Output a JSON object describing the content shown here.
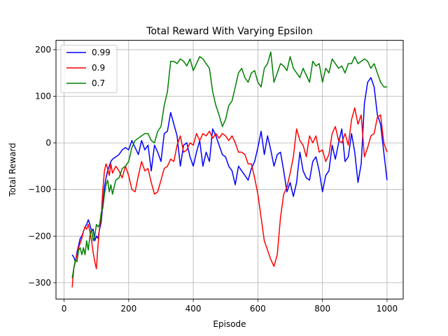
{
  "chart_data": {
    "type": "line",
    "title": "Total Reward With Varying Epsilon",
    "xlabel": "Episode",
    "ylabel": "Total Reward",
    "xlim": [
      -25,
      1050
    ],
    "ylim": [
      -335,
      220
    ],
    "xticks": [
      0,
      200,
      400,
      600,
      800,
      1000
    ],
    "yticks": [
      -300,
      -200,
      -100,
      0,
      100,
      200
    ],
    "xtick_labels": [
      "0",
      "200",
      "400",
      "600",
      "800",
      "1000"
    ],
    "ytick_labels": [
      "−300",
      "−200",
      "−100",
      "0",
      "100",
      "200"
    ],
    "grid": true,
    "legend_position": "top-left",
    "series": [
      {
        "name": "0.99",
        "color": "#0000ff",
        "x": [
          25,
          30,
          35,
          40,
          45,
          50,
          55,
          60,
          65,
          70,
          75,
          80,
          85,
          90,
          95,
          100,
          105,
          110,
          115,
          120,
          125,
          130,
          135,
          140,
          145,
          150,
          160,
          170,
          180,
          190,
          200,
          210,
          220,
          230,
          240,
          250,
          260,
          270,
          280,
          290,
          300,
          310,
          320,
          330,
          340,
          350,
          360,
          370,
          380,
          390,
          400,
          410,
          420,
          430,
          440,
          450,
          460,
          470,
          480,
          490,
          500,
          510,
          520,
          530,
          540,
          550,
          560,
          570,
          580,
          590,
          600,
          610,
          620,
          630,
          640,
          650,
          660,
          670,
          680,
          690,
          700,
          710,
          720,
          730,
          740,
          750,
          760,
          770,
          780,
          790,
          800,
          810,
          820,
          830,
          840,
          850,
          860,
          870,
          880,
          890,
          900,
          910,
          920,
          930,
          940,
          950,
          960,
          970,
          980,
          990,
          1000
        ],
        "y": [
          -240,
          -245,
          -255,
          -235,
          -220,
          -205,
          -200,
          -190,
          -180,
          -175,
          -165,
          -175,
          -190,
          -185,
          -210,
          -200,
          -205,
          -185,
          -170,
          -130,
          -95,
          -75,
          -60,
          -50,
          -40,
          -35,
          -30,
          -25,
          -15,
          -10,
          -15,
          5,
          -10,
          -25,
          5,
          -15,
          -5,
          -60,
          -5,
          -20,
          -40,
          20,
          25,
          65,
          40,
          15,
          -50,
          -5,
          0,
          -30,
          -50,
          -20,
          5,
          -50,
          -20,
          -40,
          30,
          15,
          -5,
          -25,
          -30,
          -50,
          -60,
          -90,
          -50,
          -60,
          -70,
          -80,
          -55,
          -40,
          -10,
          25,
          -25,
          15,
          -15,
          -50,
          -25,
          -20,
          -60,
          -105,
          -85,
          -115,
          -85,
          -20,
          -60,
          -75,
          -80,
          -40,
          -30,
          -60,
          -105,
          -70,
          -60,
          -5,
          -35,
          0,
          30,
          -40,
          -30,
          20,
          -20,
          -85,
          -45,
          85,
          130,
          140,
          120,
          60,
          40,
          -20,
          -80
        ]
      },
      {
        "name": "0.9",
        "color": "#ff0000",
        "x": [
          25,
          30,
          35,
          40,
          45,
          50,
          55,
          60,
          65,
          70,
          75,
          80,
          85,
          90,
          95,
          100,
          105,
          110,
          115,
          120,
          125,
          130,
          135,
          140,
          145,
          150,
          160,
          170,
          180,
          190,
          200,
          210,
          220,
          230,
          240,
          250,
          260,
          270,
          280,
          290,
          300,
          310,
          320,
          330,
          340,
          350,
          360,
          370,
          380,
          390,
          400,
          410,
          420,
          430,
          440,
          450,
          460,
          470,
          480,
          490,
          500,
          510,
          520,
          530,
          540,
          550,
          560,
          570,
          580,
          590,
          600,
          610,
          620,
          630,
          640,
          650,
          660,
          670,
          680,
          690,
          700,
          710,
          720,
          730,
          740,
          750,
          760,
          770,
          780,
          790,
          800,
          810,
          820,
          830,
          840,
          850,
          860,
          870,
          880,
          890,
          900,
          910,
          920,
          930,
          940,
          950,
          960,
          970,
          980,
          990,
          1000
        ],
        "y": [
          -310,
          -270,
          -255,
          -240,
          -225,
          -215,
          -205,
          -190,
          -180,
          -185,
          -175,
          -190,
          -210,
          -235,
          -255,
          -270,
          -220,
          -180,
          -160,
          -100,
          -60,
          -45,
          -55,
          -70,
          -45,
          -65,
          -50,
          -60,
          -75,
          -50,
          -70,
          -100,
          -105,
          -70,
          -40,
          -60,
          -55,
          -85,
          -110,
          -105,
          -80,
          -55,
          -50,
          -35,
          -40,
          -5,
          15,
          -20,
          -15,
          0,
          -5,
          20,
          5,
          20,
          15,
          25,
          10,
          20,
          10,
          20,
          15,
          5,
          15,
          0,
          -20,
          -20,
          -25,
          -45,
          -45,
          -75,
          -110,
          -160,
          -210,
          -230,
          -250,
          -265,
          -240,
          -160,
          -110,
          -95,
          -65,
          -30,
          30,
          5,
          -5,
          -30,
          15,
          0,
          15,
          -20,
          -15,
          -40,
          -25,
          20,
          35,
          5,
          0,
          20,
          -5,
          50,
          75,
          40,
          60,
          -30,
          -10,
          15,
          20,
          55,
          60,
          0,
          -20
        ]
      },
      {
        "name": "0.7",
        "color": "#008000",
        "x": [
          25,
          30,
          35,
          40,
          45,
          50,
          55,
          60,
          65,
          70,
          75,
          80,
          85,
          90,
          95,
          100,
          105,
          110,
          115,
          120,
          125,
          130,
          135,
          140,
          145,
          150,
          160,
          170,
          180,
          190,
          200,
          210,
          220,
          230,
          240,
          250,
          260,
          270,
          280,
          290,
          300,
          310,
          320,
          330,
          340,
          350,
          360,
          370,
          380,
          390,
          400,
          410,
          420,
          430,
          440,
          450,
          460,
          470,
          480,
          490,
          500,
          510,
          520,
          530,
          540,
          550,
          560,
          570,
          580,
          590,
          600,
          610,
          620,
          630,
          640,
          650,
          660,
          670,
          680,
          690,
          700,
          710,
          720,
          730,
          740,
          750,
          760,
          770,
          780,
          790,
          800,
          810,
          820,
          830,
          840,
          850,
          860,
          870,
          880,
          890,
          900,
          910,
          920,
          930,
          940,
          950,
          960,
          970,
          980,
          990,
          1000
        ],
        "y": [
          -290,
          -270,
          -250,
          -255,
          -230,
          -225,
          -240,
          -225,
          -240,
          -210,
          -230,
          -200,
          -185,
          -210,
          -200,
          -175,
          -180,
          -175,
          -150,
          -140,
          -110,
          -90,
          -80,
          -105,
          -90,
          -110,
          -80,
          -75,
          -55,
          -50,
          -40,
          -10,
          5,
          10,
          15,
          20,
          20,
          5,
          0,
          25,
          35,
          80,
          110,
          175,
          175,
          170,
          180,
          175,
          165,
          180,
          155,
          170,
          185,
          180,
          170,
          160,
          110,
          80,
          60,
          35,
          50,
          80,
          90,
          120,
          150,
          160,
          140,
          130,
          150,
          155,
          130,
          120,
          160,
          170,
          195,
          130,
          150,
          170,
          165,
          155,
          185,
          160,
          150,
          140,
          160,
          145,
          130,
          175,
          165,
          170,
          130,
          160,
          150,
          180,
          170,
          160,
          165,
          150,
          170,
          170,
          185,
          170,
          175,
          180,
          175,
          160,
          170,
          150,
          130,
          120,
          120
        ]
      }
    ]
  }
}
